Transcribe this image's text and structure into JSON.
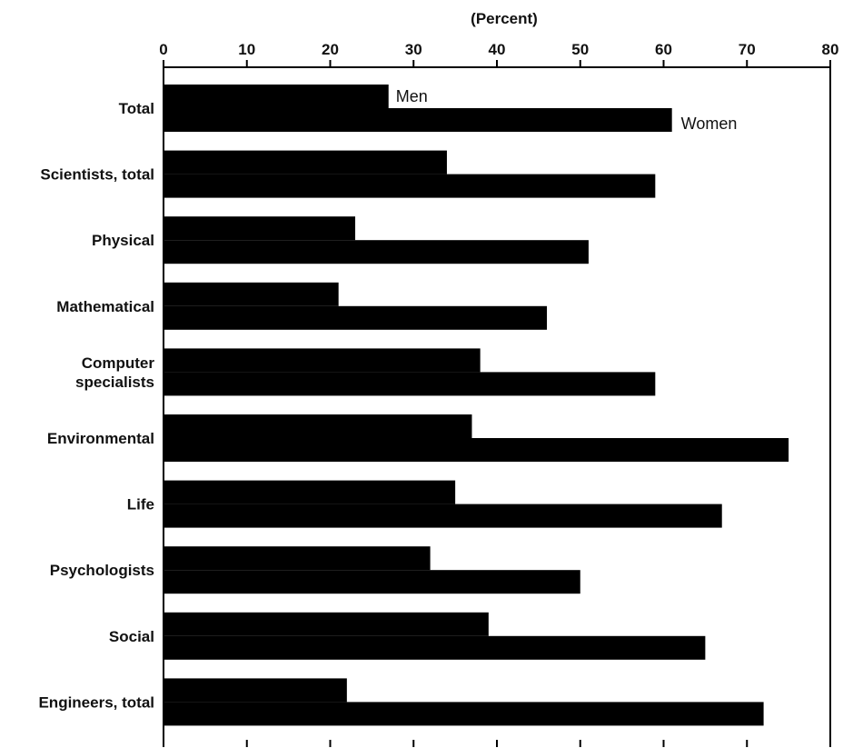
{
  "chart_data": {
    "type": "bar",
    "orientation": "horizontal",
    "xlabel": "(Percent)",
    "xlim": [
      0,
      80
    ],
    "xticks": [
      0,
      10,
      20,
      30,
      40,
      50,
      60,
      70,
      80
    ],
    "categories": [
      "Total",
      "Scientists, total",
      "Physical",
      "Mathematical",
      "Computer specialists",
      "Environmental",
      "Life",
      "Psychologists",
      "Social",
      "Engineers, total"
    ],
    "category_lines": [
      [
        "Total"
      ],
      [
        "Scientists, total"
      ],
      [
        "Physical"
      ],
      [
        "Mathematical"
      ],
      [
        "Computer",
        "specialists"
      ],
      [
        "Environmental"
      ],
      [
        "Life"
      ],
      [
        "Psychologists"
      ],
      [
        "Social"
      ],
      [
        "Engineers, total"
      ]
    ],
    "series": [
      {
        "name": "Men",
        "values": [
          27,
          34,
          23,
          21,
          38,
          37,
          35,
          32,
          39,
          22
        ]
      },
      {
        "name": "Women",
        "values": [
          61,
          59,
          51,
          46,
          59,
          75,
          67,
          50,
          65,
          72
        ]
      }
    ],
    "colors": {
      "bar": "#000000",
      "axis": "#000000"
    },
    "grid": false,
    "legend": "direct-labels"
  }
}
